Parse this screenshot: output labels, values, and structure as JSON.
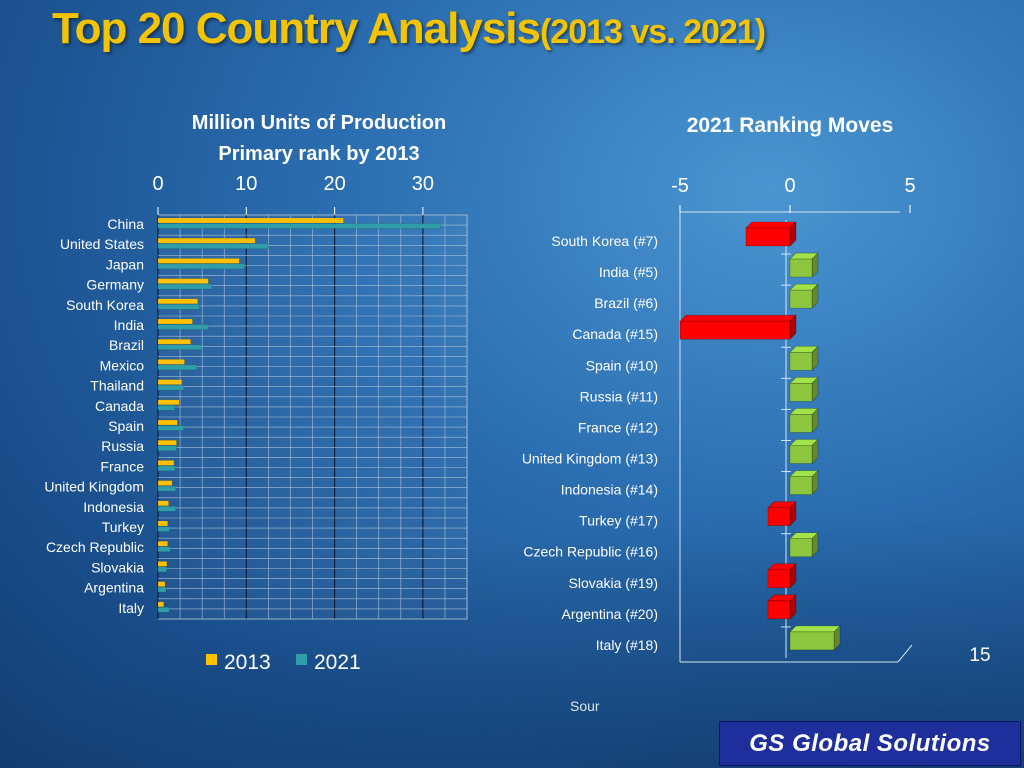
{
  "slide": {
    "title_main": "Top 20 Country Analysis",
    "title_sub": "(2013 vs. 2021)",
    "page_number": "15",
    "source_text": "Sour",
    "brand": "GS Global Solutions"
  },
  "colors": {
    "series_2013": "#ffc000",
    "series_2021": "#2f9ea8",
    "move_up": "#8dc63f",
    "move_down": "#ff0000"
  },
  "chart_data": [
    {
      "type": "bar",
      "orientation": "horizontal",
      "title": "Million Units of Production",
      "subtitle": "Primary rank by 2013",
      "xlim": [
        0,
        35
      ],
      "x_ticks": [
        "0",
        "10",
        "20",
        "30"
      ],
      "axis_position": "top",
      "grid": true,
      "legend_position": "bottom",
      "categories": [
        "China",
        "United States",
        "Japan",
        "Germany",
        "South Korea",
        "India",
        "Brazil",
        "Mexico",
        "Thailand",
        "Canada",
        "Spain",
        "Russia",
        "France",
        "United Kingdom",
        "Indonesia",
        "Turkey",
        "Czech Republic",
        "Slovakia",
        "Argentina",
        "Italy"
      ],
      "series": [
        {
          "name": "2013",
          "values": [
            21.0,
            11.0,
            9.2,
            5.7,
            4.5,
            3.9,
            3.7,
            3.0,
            2.7,
            2.4,
            2.2,
            2.1,
            1.8,
            1.6,
            1.2,
            1.1,
            1.1,
            1.0,
            0.8,
            0.65
          ]
        },
        {
          "name": "2021",
          "values": [
            32.0,
            12.5,
            9.8,
            6.1,
            4.7,
            5.7,
            4.9,
            4.4,
            2.9,
            1.9,
            2.9,
            2.1,
            1.9,
            2.0,
            2.0,
            1.3,
            1.4,
            1.0,
            0.9,
            1.25
          ]
        }
      ]
    },
    {
      "type": "bar",
      "orientation": "horizontal",
      "title": "2021 Ranking Moves",
      "xlim": [
        -5,
        5
      ],
      "x_ticks": [
        "-5",
        "0",
        "5"
      ],
      "axis_position": "top",
      "grid": false,
      "categories": [
        "South Korea (#7)",
        "India (#5)",
        "Brazil (#6)",
        "Canada (#15)",
        "Spain (#10)",
        "Russia (#11)",
        "France (#12)",
        "United Kingdom (#13)",
        "Indonesia (#14)",
        "Turkey (#17)",
        "Czech Republic (#16)",
        "Slovakia (#19)",
        "Argentina (#20)",
        "Italy (#18)"
      ],
      "values": [
        -2,
        1,
        1,
        -5,
        1,
        1,
        1,
        1,
        1,
        -1,
        1,
        -1,
        -1,
        2
      ]
    }
  ]
}
